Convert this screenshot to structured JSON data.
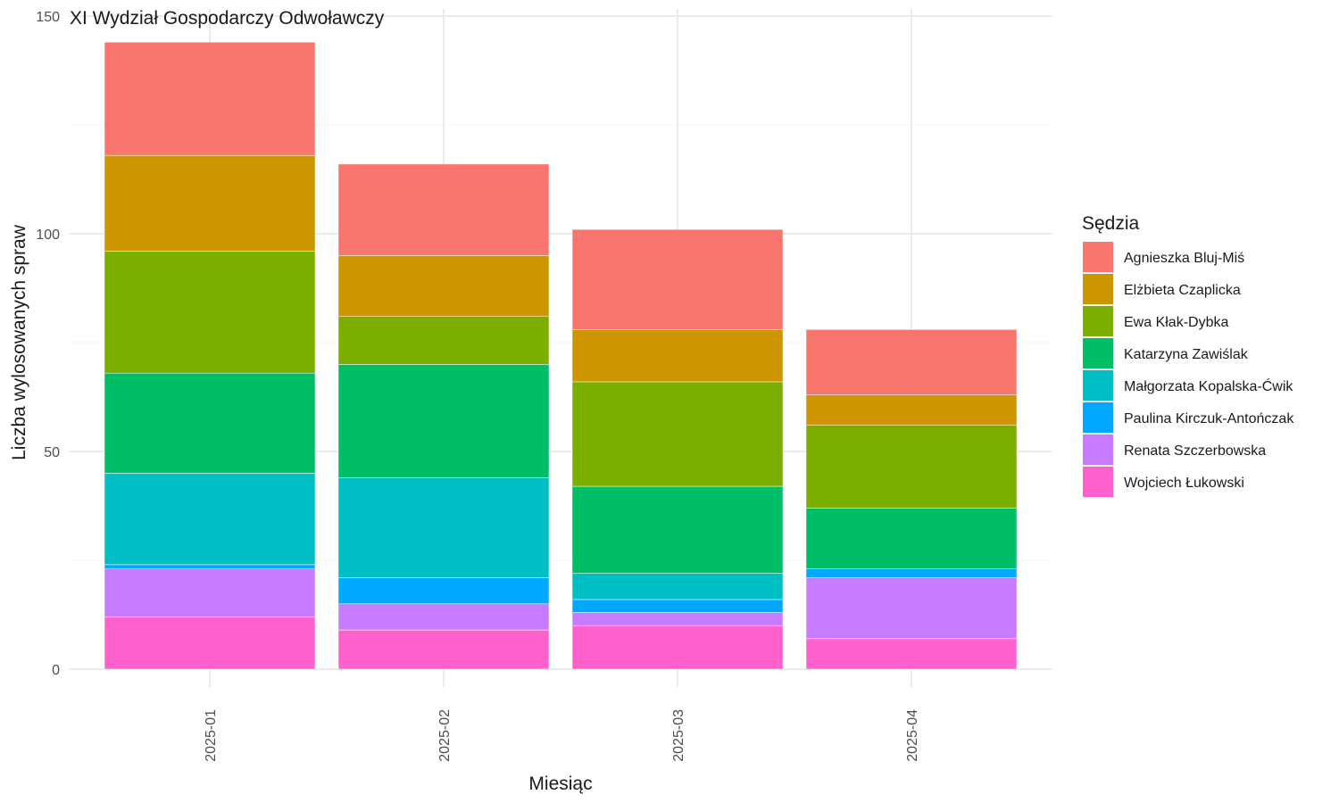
{
  "chart_data": {
    "type": "bar",
    "stacked": true,
    "title": "XI Wydział Gospodarczy Odwoławczy",
    "xlabel": "Miesiąc",
    "ylabel": "Liczba wylosowanych spraw",
    "ylim": [
      0,
      150
    ],
    "yticks": [
      0,
      50,
      100,
      150
    ],
    "grid": true,
    "legend": {
      "title": "Sędzia",
      "position": "right"
    },
    "categories": [
      "2025-01",
      "2025-02",
      "2025-03",
      "2025-04"
    ],
    "series": [
      {
        "name": "Agnieszka Bluj-Miś",
        "color": "#F8766D",
        "values": [
          26,
          21,
          23,
          15
        ]
      },
      {
        "name": "Elżbieta Czaplicka",
        "color": "#CD9600",
        "values": [
          22,
          14,
          12,
          7
        ]
      },
      {
        "name": "Ewa Kłak-Dybka",
        "color": "#7CAE00",
        "values": [
          28,
          11,
          24,
          19
        ]
      },
      {
        "name": "Katarzyna Zawiślak",
        "color": "#00BE67",
        "values": [
          23,
          26,
          20,
          14
        ]
      },
      {
        "name": "Małgorzata Kopalska-Ćwik",
        "color": "#00BFC4",
        "values": [
          21,
          23,
          6,
          0
        ]
      },
      {
        "name": "Paulina Kirczuk-Antończak",
        "color": "#00A9FF",
        "values": [
          1,
          6,
          3,
          2
        ]
      },
      {
        "name": "Renata Szczerbowska",
        "color": "#C77CFF",
        "values": [
          11,
          6,
          3,
          14
        ]
      },
      {
        "name": "Wojciech Łukowski",
        "color": "#FF61CC",
        "values": [
          12,
          9,
          10,
          7
        ]
      }
    ]
  }
}
